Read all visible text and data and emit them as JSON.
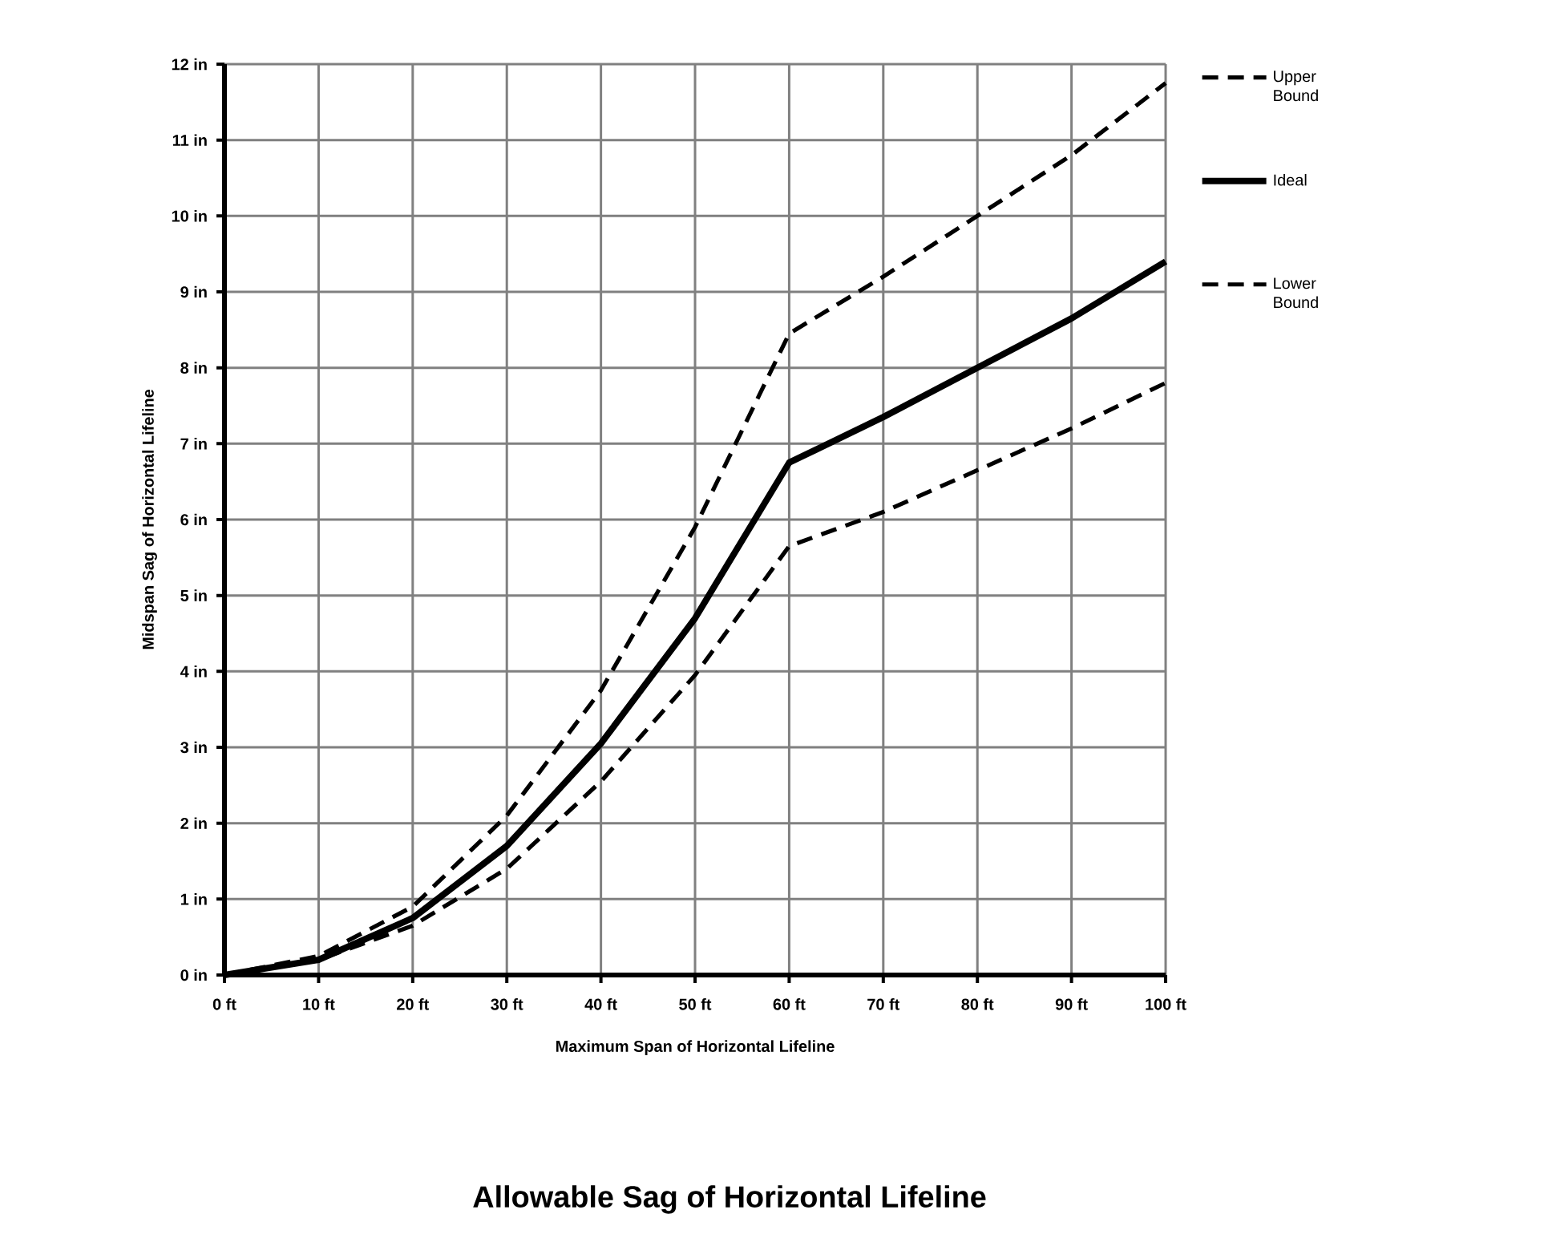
{
  "chart_data": {
    "type": "line",
    "title": "Allowable Sag of Horizontal Lifeline",
    "xlabel": "Maximum Span of Horizontal Lifeline",
    "ylabel": "Midspan Sag of Horizontal Lifeline",
    "x": [
      0,
      10,
      20,
      30,
      40,
      50,
      60,
      70,
      80,
      90,
      100
    ],
    "series": [
      {
        "name": "Upper Bound",
        "color": "#000000",
        "line_style": "dashed",
        "values": [
          0,
          0.25,
          0.9,
          2.1,
          3.75,
          5.9,
          8.45,
          9.2,
          10.0,
          10.8,
          11.75
        ]
      },
      {
        "name": "Ideal",
        "color": "#000000",
        "line_style": "solid",
        "values": [
          0,
          0.2,
          0.75,
          1.7,
          3.05,
          4.7,
          6.75,
          7.35,
          8.0,
          8.65,
          9.4
        ]
      },
      {
        "name": "Lower Bound",
        "color": "#000000",
        "line_style": "dashed",
        "values": [
          0,
          0.2,
          0.65,
          1.4,
          2.55,
          3.95,
          5.65,
          6.1,
          6.65,
          7.2,
          7.8
        ]
      }
    ],
    "xlim": [
      0,
      100
    ],
    "ylim": [
      0,
      12
    ],
    "xticks": [
      {
        "value": 0,
        "label": "0 ft"
      },
      {
        "value": 10,
        "label": "10 ft"
      },
      {
        "value": 20,
        "label": "20 ft"
      },
      {
        "value": 30,
        "label": "30 ft"
      },
      {
        "value": 40,
        "label": "40 ft"
      },
      {
        "value": 50,
        "label": "50 ft"
      },
      {
        "value": 60,
        "label": "60 ft"
      },
      {
        "value": 70,
        "label": "70 ft"
      },
      {
        "value": 80,
        "label": "80 ft"
      },
      {
        "value": 90,
        "label": "90 ft"
      },
      {
        "value": 100,
        "label": "100 ft"
      }
    ],
    "yticks": [
      {
        "value": 0,
        "label": "0 in"
      },
      {
        "value": 1,
        "label": "1 in"
      },
      {
        "value": 2,
        "label": "2 in"
      },
      {
        "value": 3,
        "label": "3 in"
      },
      {
        "value": 4,
        "label": "4 in"
      },
      {
        "value": 5,
        "label": "5 in"
      },
      {
        "value": 6,
        "label": "6 in"
      },
      {
        "value": 7,
        "label": "7 in"
      },
      {
        "value": 8,
        "label": "8 in"
      },
      {
        "value": 9,
        "label": "9 in"
      },
      {
        "value": 10,
        "label": "10 in"
      },
      {
        "value": 11,
        "label": "11 in"
      },
      {
        "value": 12,
        "label": "12 in"
      }
    ],
    "grid": true,
    "legend": "right",
    "marker": "none"
  }
}
